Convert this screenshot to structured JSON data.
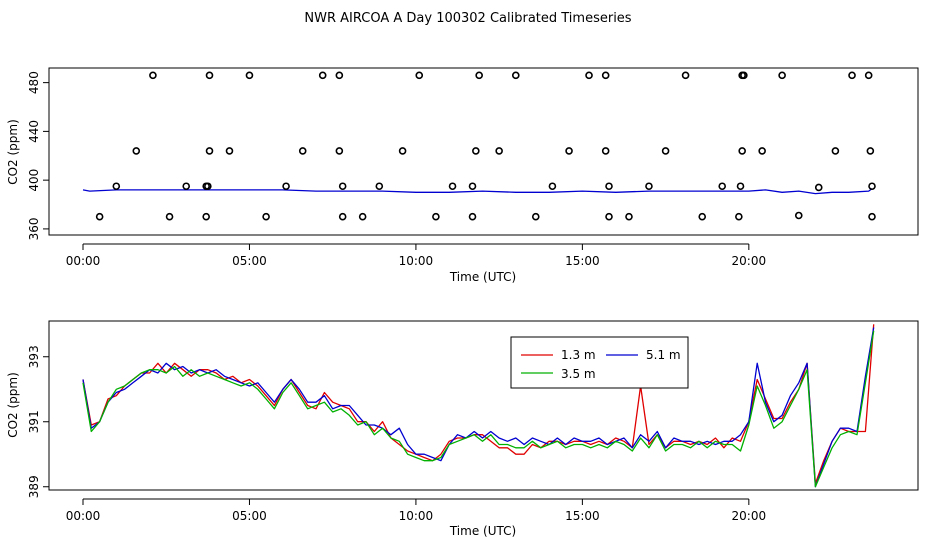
{
  "chart_title": "NWR AIRCOA A  Day 100302  Calibrated Timeseries",
  "colors": {
    "red": "#e00000",
    "green": "#00b000",
    "blue": "#0000d0",
    "black": "#000000"
  },
  "chart_data": [
    {
      "type": "line",
      "panel": "top",
      "xlabel": "Time (UTC)",
      "ylabel": "CO2 (ppm)",
      "x_unit": "hours UTC",
      "xlim": [
        0,
        24
      ],
      "ylim": [
        355,
        492
      ],
      "xticks": [
        0,
        5,
        10,
        15,
        20
      ],
      "xtick_labels": [
        "00:00",
        "05:00",
        "10:00",
        "15:00",
        "20:00"
      ],
      "yticks": [
        360,
        400,
        440,
        480
      ],
      "ytick_labels": [
        "360",
        "400",
        "440",
        "480"
      ],
      "grid": false,
      "series": [
        {
          "color": "blue",
          "style": "line",
          "x": [
            0,
            0.2,
            1,
            2,
            3,
            4,
            5,
            6,
            7,
            8,
            9,
            10,
            11,
            12,
            13,
            14,
            15,
            16,
            17,
            18,
            19,
            20,
            20.5,
            21,
            21.5,
            22,
            22.5,
            23,
            23.6,
            23.7
          ],
          "values": [
            392,
            391,
            392,
            392,
            392,
            392,
            392,
            392,
            391,
            391,
            391,
            390,
            390,
            391,
            390,
            390,
            391,
            390,
            391,
            391,
            391,
            391,
            392,
            390,
            391,
            389,
            390,
            390,
            391,
            393
          ]
        },
        {
          "color": "black",
          "style": "points",
          "x": [
            2.1,
            3.8,
            5.0,
            7.2,
            7.7,
            10.1,
            11.9,
            13.0,
            15.2,
            15.7,
            18.1,
            19.8,
            19.85,
            21.0,
            23.1,
            23.6,
            1.6,
            3.8,
            4.4,
            6.6,
            7.7,
            9.6,
            11.8,
            12.5,
            14.6,
            15.7,
            17.5,
            19.8,
            20.4,
            22.6,
            23.65,
            1.0,
            3.1,
            3.7,
            3.75,
            6.1,
            7.8,
            8.9,
            11.1,
            11.7,
            14.1,
            15.8,
            17.0,
            19.2,
            19.75,
            22.1,
            23.7,
            0.5,
            2.6,
            3.7,
            5.5,
            7.8,
            8.4,
            10.6,
            11.7,
            13.6,
            15.8,
            16.4,
            18.6,
            19.7,
            21.5,
            23.7
          ],
          "values": [
            486,
            486,
            486,
            486,
            486,
            486,
            486,
            486,
            486,
            486,
            486,
            486,
            486,
            486,
            486,
            486,
            424,
            424,
            424,
            424,
            424,
            424,
            424,
            424,
            424,
            424,
            424,
            424,
            424,
            424,
            424,
            395,
            395,
            395,
            395,
            395,
            395,
            395,
            395,
            395,
            395,
            395,
            395,
            395,
            395,
            394,
            395,
            370,
            370,
            370,
            370,
            370,
            370,
            370,
            370,
            370,
            370,
            370,
            370,
            370,
            371,
            370
          ]
        }
      ]
    },
    {
      "type": "line",
      "panel": "bottom",
      "xlabel": "Time (UTC)",
      "ylabel": "CO2 (ppm)",
      "x_unit": "hours UTC",
      "xlim": [
        0,
        24
      ],
      "ylim": [
        388.9,
        394.1
      ],
      "xticks": [
        0,
        5,
        10,
        15,
        20
      ],
      "xtick_labels": [
        "00:00",
        "05:00",
        "10:00",
        "15:00",
        "20:00"
      ],
      "yticks": [
        389,
        391,
        393
      ],
      "ytick_labels": [
        "389",
        "391",
        "393"
      ],
      "grid": false,
      "legend": {
        "position": "top-center",
        "entries": [
          "1.3 m",
          "5.1 m",
          "3.5 m"
        ]
      },
      "x": [
        0,
        0.25,
        0.5,
        0.75,
        1,
        1.25,
        1.5,
        1.75,
        2,
        2.25,
        2.5,
        2.75,
        3,
        3.25,
        3.5,
        3.75,
        4,
        4.25,
        4.5,
        4.75,
        5,
        5.25,
        5.5,
        5.75,
        6,
        6.25,
        6.5,
        6.75,
        7,
        7.25,
        7.5,
        7.75,
        8,
        8.25,
        8.5,
        8.75,
        9,
        9.25,
        9.5,
        9.75,
        10,
        10.25,
        10.5,
        10.75,
        11,
        11.25,
        11.5,
        11.75,
        12,
        12.25,
        12.5,
        12.75,
        13,
        13.25,
        13.5,
        13.75,
        14,
        14.25,
        14.5,
        14.75,
        15,
        15.25,
        15.5,
        15.75,
        16,
        16.25,
        16.5,
        16.75,
        17,
        17.25,
        17.5,
        17.75,
        18,
        18.25,
        18.5,
        18.75,
        19,
        19.25,
        19.5,
        19.75,
        20,
        20.25,
        20.5,
        20.75,
        21,
        21.25,
        21.5,
        21.75,
        22,
        22.25,
        22.5,
        22.75,
        23,
        23.25,
        23.5,
        23.75
      ],
      "series": [
        {
          "name": "1.3 m",
          "color": "red",
          "values": [
            392.3,
            390.9,
            391.0,
            391.7,
            391.8,
            392.1,
            392.3,
            392.5,
            392.5,
            392.8,
            392.5,
            392.8,
            392.6,
            392.4,
            392.6,
            392.6,
            392.5,
            392.3,
            392.4,
            392.2,
            392.3,
            392.1,
            391.8,
            391.5,
            392.0,
            392.3,
            391.9,
            391.5,
            391.4,
            391.9,
            391.6,
            391.5,
            391.4,
            391.0,
            391.0,
            390.7,
            391.0,
            390.5,
            390.3,
            390.1,
            390.0,
            389.9,
            389.8,
            390.0,
            390.4,
            390.5,
            390.5,
            390.6,
            390.6,
            390.4,
            390.2,
            390.2,
            390.0,
            390.0,
            390.3,
            390.2,
            390.4,
            390.4,
            390.3,
            390.4,
            390.4,
            390.3,
            390.4,
            390.3,
            390.5,
            390.4,
            390.2,
            392.1,
            390.3,
            390.6,
            390.2,
            390.4,
            390.4,
            390.3,
            390.4,
            390.3,
            390.5,
            390.2,
            390.5,
            390.4,
            391.0,
            392.3,
            391.7,
            391.1,
            391.1,
            391.6,
            392.0,
            392.8,
            389.1,
            389.8,
            390.4,
            390.8,
            390.7,
            390.7,
            390.7,
            394.0
          ]
        },
        {
          "name": "5.1 m",
          "color": "blue",
          "values": [
            392.3,
            390.8,
            391.0,
            391.6,
            391.9,
            392.0,
            392.2,
            392.4,
            392.6,
            392.5,
            392.8,
            392.6,
            392.7,
            392.5,
            392.6,
            392.5,
            392.6,
            392.4,
            392.3,
            392.2,
            392.1,
            392.2,
            391.9,
            391.6,
            392.0,
            392.3,
            392.0,
            391.6,
            391.6,
            391.8,
            391.4,
            391.5,
            391.5,
            391.2,
            390.9,
            390.9,
            390.8,
            390.6,
            390.8,
            390.3,
            390.0,
            390.0,
            389.9,
            389.8,
            390.3,
            390.6,
            390.5,
            390.7,
            390.5,
            390.7,
            390.5,
            390.4,
            390.5,
            390.3,
            390.5,
            390.4,
            390.3,
            390.5,
            390.3,
            390.5,
            390.4,
            390.4,
            390.5,
            390.3,
            390.4,
            390.5,
            390.2,
            390.6,
            390.4,
            390.7,
            390.2,
            390.5,
            390.4,
            390.4,
            390.3,
            390.4,
            390.3,
            390.4,
            390.4,
            390.6,
            391.0,
            392.8,
            391.6,
            391.0,
            391.2,
            391.8,
            392.2,
            392.8,
            389.0,
            389.7,
            390.4,
            390.8,
            390.8,
            390.7,
            392.4,
            393.9
          ]
        },
        {
          "name": "3.5 m",
          "color": "green",
          "values": [
            392.2,
            390.7,
            391.0,
            391.6,
            392.0,
            392.1,
            392.3,
            392.5,
            392.6,
            392.6,
            392.5,
            392.7,
            392.4,
            392.6,
            392.4,
            392.5,
            392.4,
            392.3,
            392.2,
            392.1,
            392.2,
            392.0,
            391.7,
            391.4,
            391.9,
            392.2,
            391.8,
            391.4,
            391.5,
            391.6,
            391.3,
            391.4,
            391.2,
            390.9,
            391.0,
            390.6,
            390.8,
            390.5,
            390.4,
            390.0,
            389.9,
            389.8,
            389.8,
            389.9,
            390.3,
            390.4,
            390.5,
            390.6,
            390.4,
            390.6,
            390.3,
            390.3,
            390.2,
            390.2,
            390.4,
            390.2,
            390.3,
            390.4,
            390.2,
            390.3,
            390.3,
            390.2,
            390.3,
            390.2,
            390.4,
            390.3,
            390.1,
            390.5,
            390.2,
            390.6,
            390.1,
            390.3,
            390.3,
            390.2,
            390.4,
            390.2,
            390.4,
            390.3,
            390.3,
            390.1,
            390.9,
            392.1,
            391.5,
            390.8,
            391.0,
            391.5,
            392.0,
            392.6,
            389.0,
            389.6,
            390.2,
            390.6,
            390.7,
            390.6,
            392.2,
            393.8
          ]
        }
      ]
    }
  ]
}
